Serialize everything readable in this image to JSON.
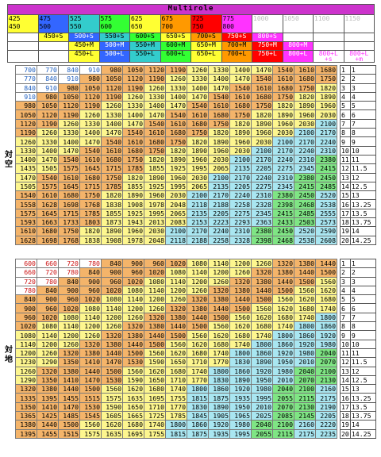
{
  "header": {
    "title": "Multirole",
    "tiers": [
      {
        "top": "425",
        "bottom": "450",
        "bg": "#ffff33",
        "fg": "#000"
      },
      {
        "top": "475",
        "bottom": "500",
        "bg": "#3366ff",
        "fg": "#000"
      },
      {
        "top": "525",
        "bottom": "550",
        "bg": "#33cccc",
        "fg": "#000"
      },
      {
        "top": "575",
        "bottom": "600",
        "bg": "#33ff33",
        "fg": "#000"
      },
      {
        "top": "625",
        "bottom": "650",
        "bg": "#ffff33",
        "fg": "#000"
      },
      {
        "top": "675",
        "bottom": "700",
        "bg": "#ff9900",
        "fg": "#000"
      },
      {
        "top": "725",
        "bottom": "750",
        "bg": "#ff0000",
        "fg": "#000"
      },
      {
        "top": "775",
        "bottom": "800",
        "bg": "#ff33ff",
        "fg": "#000"
      },
      {
        "top": "1000",
        "bottom": "",
        "bg": "#ffffff",
        "fg": "#bbbbbb"
      },
      {
        "top": "1050",
        "bottom": "",
        "bg": "#ffffff",
        "fg": "#bbbbbb"
      },
      {
        "top": "1100",
        "bottom": "",
        "bg": "#ffffff",
        "fg": "#bbbbbb"
      },
      {
        "top": "1150",
        "bottom": "",
        "bg": "#ffffff",
        "fg": "#bbbbbb"
      }
    ],
    "rows": [
      [
        {
          "t": "",
          "bg": "#fff",
          "fg": "#000"
        },
        {
          "t": "450+S",
          "bg": "#ffff33",
          "fg": "#000"
        },
        {
          "t": "500+S",
          "bg": "#3366ff",
          "fg": "#fff"
        },
        {
          "t": "550+S",
          "bg": "#33cccc",
          "fg": "#000"
        },
        {
          "t": "600+S",
          "bg": "#33ff33",
          "fg": "#000"
        },
        {
          "t": "650+S",
          "bg": "#ffff33",
          "fg": "#000"
        },
        {
          "t": "700+S",
          "bg": "#ff9900",
          "fg": "#000"
        },
        {
          "t": "750+S",
          "bg": "#ff0000",
          "fg": "#fff"
        },
        {
          "t": "800+S",
          "bg": "#ff33ff",
          "fg": "#fff"
        },
        {
          "t": "",
          "bg": "#fff",
          "fg": "#000"
        },
        {
          "t": "",
          "bg": "#fff",
          "fg": "#000"
        },
        {
          "t": "",
          "bg": "#fff",
          "fg": "#000"
        }
      ],
      [
        {
          "t": "",
          "bg": "#fff",
          "fg": "#000"
        },
        {
          "t": "",
          "bg": "#fff",
          "fg": "#000"
        },
        {
          "t": "450+M",
          "bg": "#ffff33",
          "fg": "#000"
        },
        {
          "t": "500+M",
          "bg": "#3366ff",
          "fg": "#fff"
        },
        {
          "t": "550+M",
          "bg": "#33cccc",
          "fg": "#000"
        },
        {
          "t": "600+M",
          "bg": "#33ff33",
          "fg": "#000"
        },
        {
          "t": "650+M",
          "bg": "#ffff33",
          "fg": "#000"
        },
        {
          "t": "700+M",
          "bg": "#ff9900",
          "fg": "#000"
        },
        {
          "t": "750+M",
          "bg": "#ff0000",
          "fg": "#fff"
        },
        {
          "t": "800+M",
          "bg": "#ff33ff",
          "fg": "#fff"
        },
        {
          "t": "",
          "bg": "#fff",
          "fg": "#000"
        },
        {
          "t": "",
          "bg": "#fff",
          "fg": "#000"
        }
      ],
      [
        {
          "t": "",
          "bg": "#fff",
          "fg": "#000"
        },
        {
          "t": "",
          "bg": "#fff",
          "fg": "#000"
        },
        {
          "t": "450+L",
          "bg": "#ffff33",
          "fg": "#000"
        },
        {
          "t": "500+L",
          "bg": "#3366ff",
          "fg": "#fff"
        },
        {
          "t": "550+L",
          "bg": "#33cccc",
          "fg": "#000"
        },
        {
          "t": "600+L",
          "bg": "#33ff33",
          "fg": "#000"
        },
        {
          "t": "650+L",
          "bg": "#ffff33",
          "fg": "#000"
        },
        {
          "t": "700+L",
          "bg": "#ff9900",
          "fg": "#000"
        },
        {
          "t": "750+L",
          "bg": "#ff0000",
          "fg": "#fff"
        },
        {
          "t": "800+L",
          "bg": "#ff33ff",
          "fg": "#fff"
        },
        {
          "t": "800+L\n+s",
          "bg": "#fff",
          "fg": "#ff33ff"
        },
        {
          "t": "800+L\n+m",
          "bg": "#fff",
          "fg": "#ff33ff"
        }
      ]
    ]
  },
  "sections": [
    {
      "label": "対空",
      "rows": [
        [
          700,
          770,
          840,
          910,
          980,
          1050,
          1120,
          1190,
          1260,
          1330,
          1400,
          1470,
          1540,
          1610,
          1680
        ],
        [
          770,
          840,
          910,
          980,
          1050,
          1120,
          1190,
          1260,
          1330,
          1400,
          1470,
          1540,
          1610,
          1680,
          1750
        ],
        [
          840,
          910,
          980,
          1050,
          1120,
          1190,
          1260,
          1330,
          1400,
          1470,
          1540,
          1610,
          1680,
          1750,
          1820
        ],
        [
          910,
          980,
          1050,
          1120,
          1190,
          1260,
          1330,
          1400,
          1470,
          1540,
          1610,
          1680,
          1750,
          1820,
          1890
        ],
        [
          980,
          1050,
          1120,
          1190,
          1260,
          1330,
          1400,
          1470,
          1540,
          1610,
          1680,
          1750,
          1820,
          1890,
          1960
        ],
        [
          1050,
          1120,
          1190,
          1260,
          1330,
          1400,
          1470,
          1540,
          1610,
          1680,
          1750,
          1820,
          1890,
          1960,
          2030
        ],
        [
          1120,
          1190,
          1260,
          1330,
          1400,
          1470,
          1540,
          1610,
          1680,
          1750,
          1820,
          1890,
          1960,
          2030,
          2100
        ],
        [
          1190,
          1260,
          1330,
          1400,
          1470,
          1540,
          1610,
          1680,
          1750,
          1820,
          1890,
          1960,
          2030,
          2100,
          2170
        ],
        [
          1260,
          1330,
          1400,
          1470,
          1540,
          1610,
          1680,
          1750,
          1820,
          1890,
          1960,
          2030,
          2100,
          2170,
          2240
        ],
        [
          1330,
          1400,
          1470,
          1540,
          1610,
          1680,
          1750,
          1820,
          1890,
          1960,
          2030,
          2100,
          2170,
          2240,
          2310
        ],
        [
          1400,
          1470,
          1540,
          1610,
          1680,
          1750,
          1820,
          1890,
          1960,
          2030,
          2100,
          2170,
          2240,
          2310,
          2380
        ],
        [
          1435,
          1505,
          1575,
          1645,
          1715,
          1785,
          1855,
          1925,
          1995,
          2065,
          2135,
          2205,
          2275,
          2345,
          2415
        ],
        [
          1470,
          1540,
          1610,
          1680,
          1750,
          1820,
          1890,
          1960,
          2030,
          2100,
          2170,
          2240,
          2310,
          2380,
          2450
        ],
        [
          1505,
          1575,
          1645,
          1715,
          1785,
          1855,
          1925,
          1995,
          2065,
          2135,
          2205,
          2275,
          2345,
          2415,
          2485
        ],
        [
          1540,
          1610,
          1680,
          1750,
          1820,
          1890,
          1960,
          2030,
          2100,
          2170,
          2240,
          2310,
          2380,
          2450,
          2520
        ],
        [
          1558,
          1628,
          1698,
          1768,
          1838,
          1908,
          1978,
          2048,
          2118,
          2188,
          2258,
          2328,
          2398,
          2468,
          2538
        ],
        [
          1575,
          1645,
          1715,
          1785,
          1855,
          1925,
          1995,
          2065,
          2135,
          2205,
          2275,
          2345,
          2415,
          2485,
          2555
        ],
        [
          1593,
          1663,
          1733,
          1803,
          1873,
          1943,
          2013,
          2083,
          2153,
          2223,
          2293,
          2363,
          2433,
          2503,
          2573
        ],
        [
          1610,
          1680,
          1750,
          1820,
          1890,
          1960,
          2030,
          2100,
          2170,
          2240,
          2310,
          2380,
          2450,
          2520,
          2590
        ],
        [
          1628,
          1698,
          1768,
          1838,
          1908,
          1978,
          2048,
          2118,
          2188,
          2258,
          2328,
          2398,
          2468,
          2538,
          2608
        ]
      ]
    },
    {
      "label": "対地",
      "rows": [
        [
          600,
          660,
          720,
          780,
          840,
          900,
          960,
          1020,
          1080,
          1140,
          1200,
          1260,
          1320,
          1380,
          1440
        ],
        [
          660,
          720,
          780,
          840,
          900,
          960,
          1020,
          1080,
          1140,
          1200,
          1260,
          1320,
          1380,
          1440,
          1500
        ],
        [
          720,
          780,
          840,
          900,
          960,
          1020,
          1080,
          1140,
          1200,
          1260,
          1320,
          1380,
          1440,
          1500,
          1560
        ],
        [
          780,
          840,
          900,
          960,
          1020,
          1080,
          1140,
          1200,
          1260,
          1320,
          1380,
          1440,
          1500,
          1560,
          1620
        ],
        [
          840,
          900,
          960,
          1020,
          1080,
          1140,
          1200,
          1260,
          1320,
          1380,
          1440,
          1500,
          1560,
          1620,
          1680
        ],
        [
          900,
          960,
          1020,
          1080,
          1140,
          1200,
          1260,
          1320,
          1380,
          1440,
          1500,
          1560,
          1620,
          1680,
          1740
        ],
        [
          960,
          1020,
          1080,
          1140,
          1200,
          1260,
          1320,
          1380,
          1440,
          1500,
          1560,
          1620,
          1680,
          1740,
          1800
        ],
        [
          1020,
          1080,
          1140,
          1200,
          1260,
          1320,
          1380,
          1440,
          1500,
          1560,
          1620,
          1680,
          1740,
          1800,
          1860
        ],
        [
          1080,
          1140,
          1200,
          1260,
          1320,
          1380,
          1440,
          1500,
          1560,
          1620,
          1680,
          1740,
          1800,
          1860,
          1920
        ],
        [
          1140,
          1200,
          1260,
          1320,
          1380,
          1440,
          1500,
          1560,
          1620,
          1680,
          1740,
          1800,
          1860,
          1920,
          1980
        ],
        [
          1200,
          1260,
          1320,
          1380,
          1440,
          1500,
          1560,
          1620,
          1680,
          1740,
          1800,
          1860,
          1920,
          1980,
          2040
        ],
        [
          1230,
          1290,
          1350,
          1410,
          1470,
          1530,
          1590,
          1650,
          1710,
          1770,
          1830,
          1890,
          1950,
          2010,
          2070
        ],
        [
          1260,
          1320,
          1380,
          1440,
          1500,
          1560,
          1620,
          1680,
          1740,
          1800,
          1860,
          1920,
          1980,
          2040,
          2100
        ],
        [
          1290,
          1350,
          1410,
          1470,
          1530,
          1590,
          1650,
          1710,
          1770,
          1830,
          1890,
          1950,
          2010,
          2070,
          2130
        ],
        [
          1320,
          1380,
          1440,
          1500,
          1560,
          1620,
          1680,
          1740,
          1800,
          1860,
          1920,
          1980,
          2040,
          2100,
          2160
        ],
        [
          1335,
          1395,
          1455,
          1515,
          1575,
          1635,
          1695,
          1755,
          1815,
          1875,
          1935,
          1995,
          2055,
          2115,
          2175
        ],
        [
          1350,
          1410,
          1470,
          1530,
          1590,
          1650,
          1710,
          1770,
          1830,
          1890,
          1950,
          2010,
          2070,
          2130,
          2190
        ],
        [
          1365,
          1425,
          1485,
          1545,
          1605,
          1665,
          1725,
          1785,
          1845,
          1905,
          1965,
          2025,
          2085,
          2145,
          2205
        ],
        [
          1380,
          1440,
          1500,
          1560,
          1620,
          1680,
          1740,
          1800,
          1860,
          1920,
          1980,
          2040,
          2100,
          2160,
          2220
        ],
        [
          1395,
          1455,
          1515,
          1575,
          1635,
          1695,
          1755,
          1815,
          1875,
          1935,
          1995,
          2055,
          2115,
          2175,
          2235
        ]
      ]
    }
  ],
  "index": {
    "n": [
      "1",
      "2",
      "3",
      "4",
      "5",
      "6",
      "7",
      "8",
      "9",
      "10",
      "11",
      "12",
      "13",
      "14",
      "15",
      "16",
      "17",
      "18",
      "19",
      "20"
    ],
    "v": [
      "1",
      "2",
      "3",
      "4",
      "5",
      "6",
      "7",
      "8",
      "9",
      "10",
      "11",
      "11.5",
      "12",
      "12.5",
      "13",
      "13.25",
      "13.5",
      "13.75",
      "14",
      "14.25"
    ]
  },
  "colors": {
    "white": "#ffffff",
    "blue_text": "#1f5fbf",
    "red_text": "#cc1111",
    "orange": "#f4b46a",
    "yellow": "#fdf68f",
    "light_blue": "#a9e6f1",
    "green": "#7fe584",
    "purple": "#c8a7e4"
  }
}
